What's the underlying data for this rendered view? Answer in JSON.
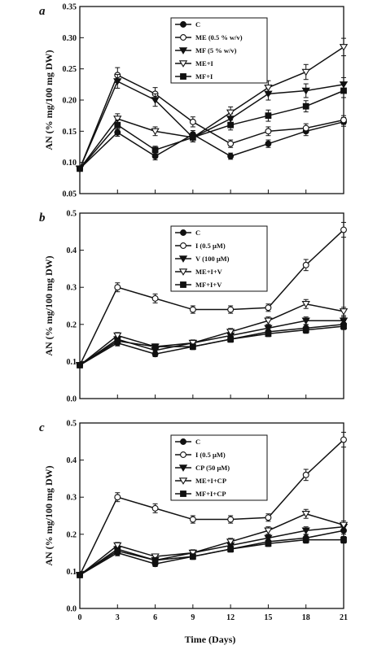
{
  "figure": {
    "x_axis_label": "Time (Days)"
  },
  "chart_data": [
    {
      "panel_label": "a",
      "type": "line",
      "ylabel": "AN (% mg/100 mg DW)",
      "xlabel": "",
      "xlim": [
        0,
        21
      ],
      "ylim": [
        0.05,
        0.35
      ],
      "x_ticks": [
        "0",
        "3",
        "6",
        "9",
        "12",
        "15",
        "18",
        "21"
      ],
      "y_ticks": [
        "0.05",
        "0.10",
        "0.15",
        "0.20",
        "0.25",
        "0.30",
        "0.35"
      ],
      "x_tick_labels_shown": false,
      "legend_position": "top-center",
      "x": [
        0,
        3,
        6,
        9,
        12,
        15,
        18,
        21
      ],
      "series": [
        {
          "name": "C",
          "marker": "filled-circle",
          "values": [
            0.09,
            0.148,
            0.11,
            0.145,
            0.11,
            0.13,
            0.15,
            0.165
          ],
          "errors": [
            0.004,
            0.006,
            0.006,
            0.006,
            0.005,
            0.006,
            0.007,
            0.007
          ]
        },
        {
          "name": "ME (0.5 % w/v)",
          "marker": "open-circle",
          "values": [
            0.09,
            0.24,
            0.21,
            0.165,
            0.13,
            0.15,
            0.155,
            0.168
          ],
          "errors": [
            0.004,
            0.012,
            0.01,
            0.008,
            0.006,
            0.007,
            0.007,
            0.007
          ]
        },
        {
          "name": "MF (5 % w/v)",
          "marker": "filled-triangle-down",
          "values": [
            0.09,
            0.23,
            0.2,
            0.14,
            0.17,
            0.21,
            0.215,
            0.225
          ],
          "errors": [
            0.004,
            0.011,
            0.01,
            0.007,
            0.008,
            0.01,
            0.011,
            0.011
          ]
        },
        {
          "name": "ME+I",
          "marker": "open-triangle-down",
          "values": [
            0.09,
            0.17,
            0.15,
            0.14,
            0.18,
            0.22,
            0.245,
            0.285
          ],
          "errors": [
            0.004,
            0.008,
            0.007,
            0.007,
            0.009,
            0.011,
            0.012,
            0.014
          ]
        },
        {
          "name": "MF+I",
          "marker": "filled-square",
          "values": [
            0.09,
            0.16,
            0.12,
            0.14,
            0.16,
            0.175,
            0.19,
            0.215
          ],
          "errors": [
            0.004,
            0.008,
            0.006,
            0.007,
            0.008,
            0.009,
            0.009,
            0.011
          ]
        }
      ]
    },
    {
      "panel_label": "b",
      "type": "line",
      "ylabel": "AN (% mg/100 mg DW)",
      "xlabel": "",
      "xlim": [
        0,
        21
      ],
      "ylim": [
        0.0,
        0.5
      ],
      "x_ticks": [
        "0",
        "3",
        "6",
        "9",
        "12",
        "15",
        "18",
        "21"
      ],
      "y_ticks": [
        "0.0",
        "0.1",
        "0.2",
        "0.3",
        "0.4",
        "0.5"
      ],
      "x_tick_labels_shown": false,
      "legend_position": "top-center",
      "x": [
        0,
        3,
        6,
        9,
        12,
        15,
        18,
        21
      ],
      "series": [
        {
          "name": "C",
          "marker": "filled-circle",
          "values": [
            0.09,
            0.15,
            0.12,
            0.14,
            0.16,
            0.18,
            0.19,
            0.2
          ],
          "errors": [
            0.005,
            0.008,
            0.007,
            0.008,
            0.008,
            0.009,
            0.009,
            0.01
          ]
        },
        {
          "name": "I (0.5 μM)",
          "marker": "open-circle",
          "values": [
            0.09,
            0.3,
            0.27,
            0.24,
            0.24,
            0.245,
            0.36,
            0.455
          ],
          "errors": [
            0.005,
            0.012,
            0.012,
            0.01,
            0.01,
            0.01,
            0.015,
            0.02
          ]
        },
        {
          "name": "V (100 μM)",
          "marker": "filled-triangle-down",
          "values": [
            0.09,
            0.16,
            0.13,
            0.15,
            0.17,
            0.19,
            0.21,
            0.21
          ],
          "errors": [
            0.005,
            0.008,
            0.007,
            0.008,
            0.008,
            0.009,
            0.01,
            0.01
          ]
        },
        {
          "name": "ME+I+V",
          "marker": "open-triangle-down",
          "values": [
            0.09,
            0.17,
            0.14,
            0.15,
            0.18,
            0.21,
            0.255,
            0.235
          ],
          "errors": [
            0.005,
            0.008,
            0.007,
            0.008,
            0.009,
            0.01,
            0.012,
            0.011
          ]
        },
        {
          "name": "MF+I+V",
          "marker": "filled-square",
          "values": [
            0.09,
            0.155,
            0.14,
            0.14,
            0.16,
            0.175,
            0.185,
            0.195
          ],
          "errors": [
            0.005,
            0.008,
            0.007,
            0.007,
            0.008,
            0.008,
            0.009,
            0.009
          ]
        }
      ]
    },
    {
      "panel_label": "c",
      "type": "line",
      "ylabel": "AN (% mg/100 mg DW)",
      "xlabel": "Time (Days)",
      "xlim": [
        0,
        21
      ],
      "ylim": [
        0.0,
        0.5
      ],
      "x_ticks": [
        "0",
        "3",
        "6",
        "9",
        "12",
        "15",
        "18",
        "21"
      ],
      "y_ticks": [
        "0.0",
        "0.1",
        "0.2",
        "0.3",
        "0.4",
        "0.5"
      ],
      "x_tick_labels_shown": true,
      "legend_position": "top-center",
      "x": [
        0,
        3,
        6,
        9,
        12,
        15,
        18,
        21
      ],
      "series": [
        {
          "name": "C",
          "marker": "filled-circle",
          "values": [
            0.09,
            0.15,
            0.12,
            0.14,
            0.16,
            0.18,
            0.19,
            0.21
          ],
          "errors": [
            0.005,
            0.008,
            0.007,
            0.008,
            0.008,
            0.009,
            0.009,
            0.01
          ]
        },
        {
          "name": "I (0.5 μM)",
          "marker": "open-circle",
          "values": [
            0.09,
            0.3,
            0.27,
            0.24,
            0.24,
            0.245,
            0.36,
            0.455
          ],
          "errors": [
            0.005,
            0.012,
            0.012,
            0.01,
            0.01,
            0.01,
            0.015,
            0.02
          ]
        },
        {
          "name": "CP (50 μM)",
          "marker": "filled-triangle-down",
          "values": [
            0.09,
            0.16,
            0.13,
            0.15,
            0.17,
            0.19,
            0.21,
            0.22
          ],
          "errors": [
            0.005,
            0.008,
            0.007,
            0.008,
            0.008,
            0.009,
            0.01,
            0.01
          ]
        },
        {
          "name": "ME+I+CP",
          "marker": "open-triangle-down",
          "values": [
            0.09,
            0.17,
            0.14,
            0.15,
            0.18,
            0.21,
            0.255,
            0.225
          ],
          "errors": [
            0.005,
            0.008,
            0.007,
            0.008,
            0.009,
            0.01,
            0.012,
            0.011
          ]
        },
        {
          "name": "MF+I+CP",
          "marker": "filled-square",
          "values": [
            0.09,
            0.155,
            0.13,
            0.14,
            0.16,
            0.175,
            0.185,
            0.185
          ],
          "errors": [
            0.005,
            0.008,
            0.007,
            0.007,
            0.008,
            0.008,
            0.009,
            0.009
          ]
        }
      ]
    }
  ]
}
